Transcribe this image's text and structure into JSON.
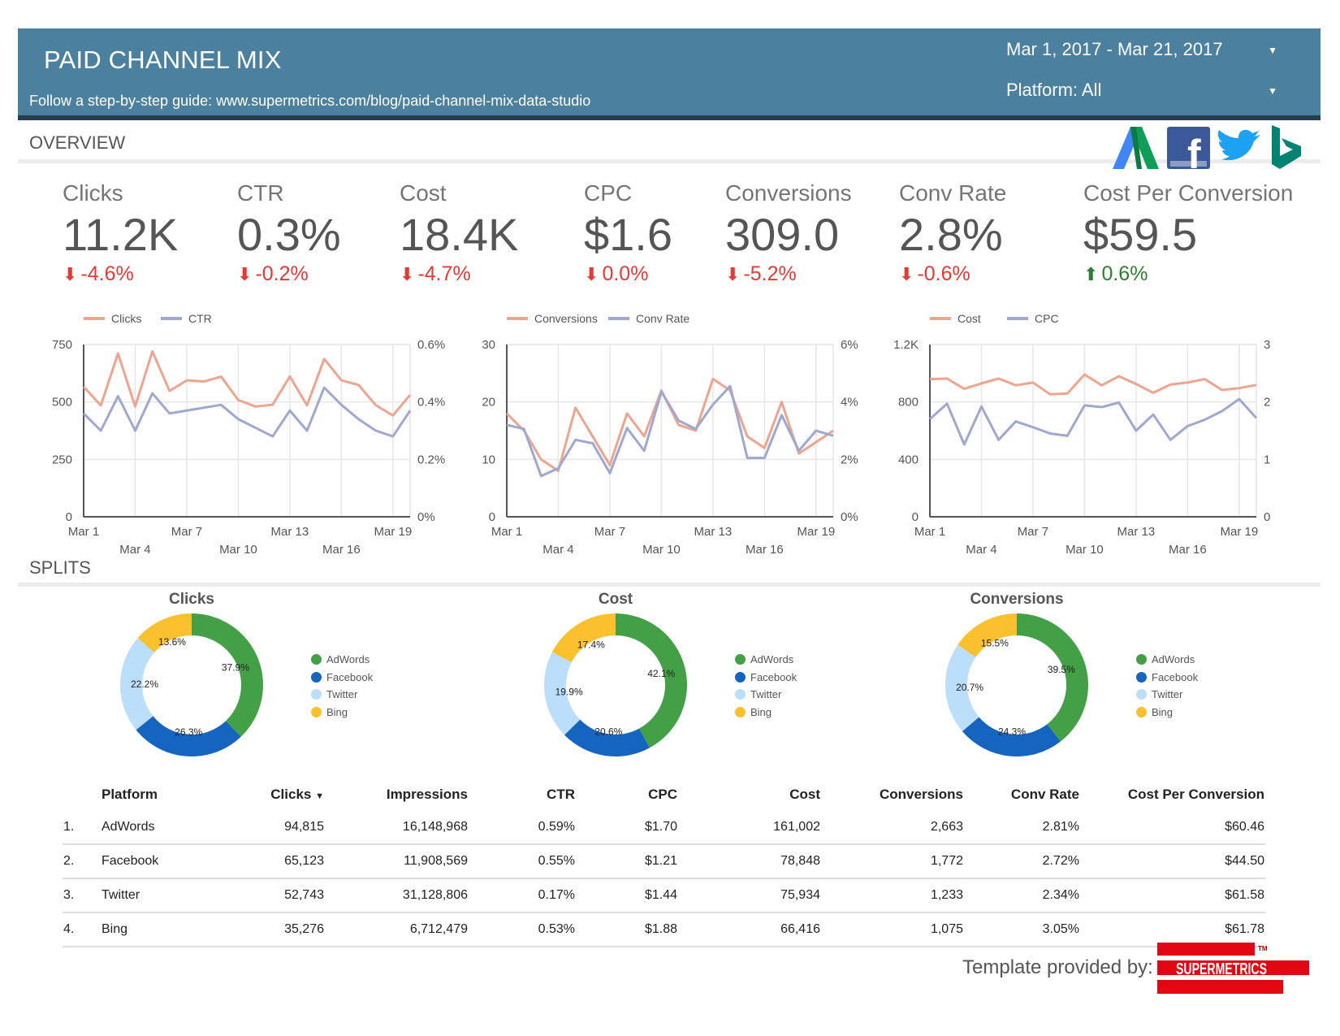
{
  "header": {
    "title": "PAID CHANNEL MIX",
    "subtitle": "Follow a step-by-step guide: www.supermetrics.com/blog/paid-channel-mix-data-studio",
    "date_range": "Mar 1, 2017 - Mar 21, 2017",
    "platform_filter": "Platform: All",
    "background_color": "#4b809f"
  },
  "overview": {
    "title": "OVERVIEW",
    "logos": [
      "adwords-logo",
      "facebook-logo",
      "twitter-logo",
      "bing-logo"
    ],
    "kpis": [
      {
        "label": "Clicks",
        "value": "11.2K",
        "delta": "-4.6%",
        "direction": "down"
      },
      {
        "label": "CTR",
        "value": "0.3%",
        "delta": "-0.2%",
        "direction": "down"
      },
      {
        "label": "Cost",
        "value": "18.4K",
        "delta": "-4.7%",
        "direction": "down"
      },
      {
        "label": "CPC",
        "value": "$1.6",
        "delta": "0.0%",
        "direction": "down"
      },
      {
        "label": "Conversions",
        "value": "309.0",
        "delta": "-5.2%",
        "direction": "down"
      },
      {
        "label": "Conv Rate",
        "value": "2.8%",
        "delta": "-0.6%",
        "direction": "down"
      },
      {
        "label": "Cost Per Conversion",
        "value": "$59.5",
        "delta": "0.6%",
        "direction": "up"
      }
    ],
    "arrows": {
      "down": "⬇",
      "up": "⬆"
    }
  },
  "chart_data": [
    {
      "type": "line",
      "x": [
        "Mar 1",
        "Mar 2",
        "Mar 3",
        "Mar 4",
        "Mar 5",
        "Mar 6",
        "Mar 7",
        "Mar 8",
        "Mar 9",
        "Mar 10",
        "Mar 11",
        "Mar 12",
        "Mar 13",
        "Mar 14",
        "Mar 15",
        "Mar 16",
        "Mar 17",
        "Mar 18",
        "Mar 19",
        "Mar 20"
      ],
      "x_tick_labels_row1": [
        "Mar 1",
        "Mar 7",
        "Mar 13",
        "Mar 19"
      ],
      "x_tick_labels_row2": [
        "Mar 4",
        "Mar 10",
        "Mar 16"
      ],
      "series": [
        {
          "name": "Clicks",
          "axis": "left",
          "color": "#eea58f",
          "values": [
            566,
            485,
            711,
            480,
            720,
            548,
            594,
            589,
            610,
            508,
            480,
            488,
            611,
            485,
            687,
            594,
            574,
            486,
            441,
            531
          ]
        },
        {
          "name": "CTR",
          "axis": "right",
          "color": "#9fa8d0",
          "values": [
            0.36,
            0.3,
            0.42,
            0.3,
            0.43,
            0.36,
            0.37,
            0.38,
            0.39,
            0.34,
            0.31,
            0.28,
            0.37,
            0.3,
            0.45,
            0.39,
            0.34,
            0.3,
            0.28,
            0.37
          ]
        }
      ],
      "ylim_left": [
        0,
        750
      ],
      "ylim_right": [
        0,
        0.6
      ],
      "yticks_left": [
        "0",
        "250",
        "500",
        "750"
      ],
      "yticks_right": [
        "0%",
        "0.2%",
        "0.4%",
        "0.6%"
      ],
      "grid": true,
      "legend": "top-left"
    },
    {
      "type": "line",
      "x": [
        "Mar 1",
        "Mar 2",
        "Mar 3",
        "Mar 4",
        "Mar 5",
        "Mar 6",
        "Mar 7",
        "Mar 8",
        "Mar 9",
        "Mar 10",
        "Mar 11",
        "Mar 12",
        "Mar 13",
        "Mar 14",
        "Mar 15",
        "Mar 16",
        "Mar 17",
        "Mar 18",
        "Mar 19",
        "Mar 20"
      ],
      "x_tick_labels_row1": [
        "Mar 1",
        "Mar 7",
        "Mar 13",
        "Mar 19"
      ],
      "x_tick_labels_row2": [
        "Mar 4",
        "Mar 10",
        "Mar 16"
      ],
      "series": [
        {
          "name": "Conversions",
          "axis": "left",
          "color": "#eea58f",
          "values": [
            18,
            15,
            10,
            8,
            19,
            14,
            9,
            18,
            14,
            22,
            16,
            15,
            24,
            22,
            14,
            12,
            20,
            11,
            13,
            15
          ]
        },
        {
          "name": "Conv Rate",
          "axis": "right",
          "color": "#9fa8d0",
          "values": [
            3.2,
            3.06,
            1.42,
            1.69,
            2.68,
            2.56,
            1.52,
            3.09,
            2.3,
            4.36,
            3.35,
            3.06,
            3.91,
            4.55,
            2.05,
            2.05,
            3.54,
            2.3,
            3.0,
            2.82
          ]
        }
      ],
      "ylim_left": [
        0,
        30
      ],
      "ylim_right": [
        0,
        6
      ],
      "yticks_left": [
        "0",
        "10",
        "20",
        "30"
      ],
      "yticks_right": [
        "0%",
        "2%",
        "4%",
        "6%"
      ],
      "grid": true,
      "legend": "top-left"
    },
    {
      "type": "line",
      "x": [
        "Mar 1",
        "Mar 2",
        "Mar 3",
        "Mar 4",
        "Mar 5",
        "Mar 6",
        "Mar 7",
        "Mar 8",
        "Mar 9",
        "Mar 10",
        "Mar 11",
        "Mar 12",
        "Mar 13",
        "Mar 14",
        "Mar 15",
        "Mar 16",
        "Mar 17",
        "Mar 18",
        "Mar 19",
        "Mar 20"
      ],
      "x_tick_labels_row1": [
        "Mar 1",
        "Mar 7",
        "Mar 13",
        "Mar 19"
      ],
      "x_tick_labels_row2": [
        "Mar 4",
        "Mar 10",
        "Mar 16"
      ],
      "series": [
        {
          "name": "Cost",
          "axis": "left",
          "color": "#eea58f",
          "values": [
            959,
            963,
            891,
            929,
            963,
            916,
            935,
            853,
            859,
            991,
            916,
            979,
            925,
            864,
            921,
            935,
            959,
            883,
            896,
            918
          ]
        },
        {
          "name": "CPC",
          "axis": "right",
          "color": "#9fa8d0",
          "values": [
            1.7,
            1.97,
            1.26,
            1.92,
            1.34,
            1.66,
            1.56,
            1.45,
            1.41,
            1.94,
            1.91,
            1.99,
            1.5,
            1.78,
            1.34,
            1.58,
            1.69,
            1.84,
            2.05,
            1.72
          ]
        }
      ],
      "ylim_left": [
        0,
        1200
      ],
      "ylim_right": [
        0,
        3
      ],
      "yticks_left": [
        "0",
        "400",
        "800",
        "1.2K"
      ],
      "yticks_right": [
        "0",
        "1",
        "2",
        "3"
      ],
      "grid": true,
      "legend": "top-left"
    },
    {
      "type": "pie",
      "title": "Clicks",
      "categories": [
        "AdWords",
        "Facebook",
        "Twitter",
        "Bing"
      ],
      "values": [
        37.9,
        26.3,
        22.2,
        13.6
      ],
      "labels": [
        "37.9%",
        "26.3%",
        "22.2%",
        "13.6%"
      ],
      "colors": [
        "#43a047",
        "#1565c0",
        "#bbdefb",
        "#fbc02d"
      ],
      "legend": "right"
    },
    {
      "type": "pie",
      "title": "Cost",
      "categories": [
        "AdWords",
        "Facebook",
        "Twitter",
        "Bing"
      ],
      "values": [
        42.1,
        20.6,
        19.9,
        17.4
      ],
      "labels": [
        "42.1%",
        "20.6%",
        "19.9%",
        "17.4%"
      ],
      "colors": [
        "#43a047",
        "#1565c0",
        "#bbdefb",
        "#fbc02d"
      ],
      "legend": "right"
    },
    {
      "type": "pie",
      "title": "Conversions",
      "categories": [
        "AdWords",
        "Facebook",
        "Twitter",
        "Bing"
      ],
      "values": [
        39.5,
        24.3,
        20.7,
        15.5
      ],
      "labels": [
        "39.5%",
        "24.3%",
        "20.7%",
        "15.5%"
      ],
      "colors": [
        "#43a047",
        "#1565c0",
        "#bbdefb",
        "#fbc02d"
      ],
      "legend": "right"
    }
  ],
  "splits": {
    "title": "SPLITS"
  },
  "table": {
    "columns": [
      "Platform",
      "Clicks",
      "Impressions",
      "CTR",
      "CPC",
      "Cost",
      "Conversions",
      "Conv Rate",
      "Cost Per Conversion"
    ],
    "sort_indicator": "▼",
    "rows": [
      {
        "index": "1.",
        "cells": [
          "AdWords",
          "94,815",
          "16,148,968",
          "0.59%",
          "$1.70",
          "161,002",
          "2,663",
          "2.81%",
          "$60.46"
        ]
      },
      {
        "index": "2.",
        "cells": [
          "Facebook",
          "65,123",
          "11,908,569",
          "0.55%",
          "$1.21",
          "78,848",
          "1,772",
          "2.72%",
          "$44.50"
        ]
      },
      {
        "index": "3.",
        "cells": [
          "Twitter",
          "52,743",
          "31,128,806",
          "0.17%",
          "$1.44",
          "75,934",
          "1,233",
          "2.34%",
          "$61.58"
        ]
      },
      {
        "index": "4.",
        "cells": [
          "Bing",
          "35,276",
          "6,712,479",
          "0.53%",
          "$1.88",
          "66,416",
          "1,075",
          "3.05%",
          "$61.78"
        ]
      }
    ]
  },
  "footer": {
    "text": "Template provided by:",
    "logo_text": "SUPERMETRICS",
    "logo_tm": "TM",
    "logo_color": "#e30613"
  }
}
